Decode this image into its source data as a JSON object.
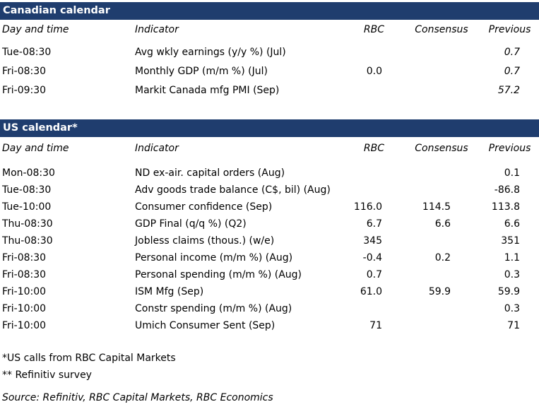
{
  "canadian": {
    "title": "Canadian calendar",
    "headers": {
      "time": "Day and time",
      "indicator": "Indicator",
      "rbc": "RBC",
      "consensus": "Consensus",
      "previous": "Previous"
    },
    "rows": [
      {
        "time": "Tue-08:30",
        "indicator": "Avg wkly earnings (y/y %) (Jul)",
        "rbc": "",
        "consensus": "",
        "previous": "0.7"
      },
      {
        "time": "Fri-08:30",
        "indicator": "Monthly GDP (m/m %) (Jul)",
        "rbc": "0.0",
        "consensus": "",
        "previous": "0.7"
      },
      {
        "time": "Fri-09:30",
        "indicator": "Markit Canada mfg PMI (Sep)",
        "rbc": "",
        "consensus": "",
        "previous": "57.2"
      }
    ]
  },
  "us": {
    "title": "US calendar*",
    "headers": {
      "time": "Day and time",
      "indicator": "Indicator",
      "rbc": "RBC",
      "consensus": "Consensus",
      "previous": "Previous"
    },
    "rows": [
      {
        "time": "Mon-08:30",
        "indicator": "ND ex-air. capital orders (Aug)",
        "rbc": "",
        "consensus": "",
        "previous": "0.1"
      },
      {
        "time": "Tue-08:30",
        "indicator": "Adv goods trade balance (C$, bil) (Aug)",
        "rbc": "",
        "consensus": "",
        "previous": "-86.8"
      },
      {
        "time": "Tue-10:00",
        "indicator": "Consumer confidence (Sep)",
        "rbc": "116.0",
        "consensus": "114.5",
        "previous": "113.8"
      },
      {
        "time": "Thu-08:30",
        "indicator": "GDP Final (q/q %) (Q2)",
        "rbc": "6.7",
        "consensus": "6.6",
        "previous": "6.6"
      },
      {
        "time": "Thu-08:30",
        "indicator": "Jobless claims (thous.) (w/e)",
        "rbc": "345",
        "consensus": "",
        "previous": "351"
      },
      {
        "time": "Fri-08:30",
        "indicator": "Personal income (m/m %) (Aug)",
        "rbc": "-0.4",
        "consensus": "0.2",
        "previous": "1.1"
      },
      {
        "time": "Fri-08:30",
        "indicator": "Personal spending (m/m %) (Aug)",
        "rbc": "0.7",
        "consensus": "",
        "previous": "0.3"
      },
      {
        "time": "Fri-10:00",
        "indicator": "ISM Mfg (Sep)",
        "rbc": "61.0",
        "consensus": "59.9",
        "previous": "59.9"
      },
      {
        "time": "Fri-10:00",
        "indicator": "Constr spending (m/m %) (Aug)",
        "rbc": "",
        "consensus": "",
        "previous": "0.3"
      },
      {
        "time": "Fri-10:00",
        "indicator": "Umich Consumer Sent (Sep)",
        "rbc": "71",
        "consensus": "",
        "previous": "71"
      }
    ]
  },
  "notes": {
    "us_calls": "*US calls from RBC Capital Markets",
    "survey": "** Refinitiv survey",
    "source": "Source: Refinitiv, RBC Capital Markets, RBC Economics"
  }
}
